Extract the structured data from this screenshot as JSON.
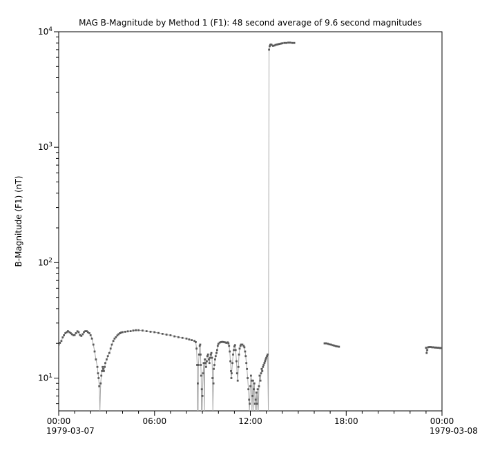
{
  "window": {
    "background": "#ffffff"
  },
  "chart_data": {
    "type": "scatter",
    "title": "MAG  B-Magnitude by Method 1 (F1): 48 second average of 9.6 second magnitudes",
    "ylabel": "B-Magnitude (F1) (nT)",
    "xlabel": "",
    "y_scale": "log",
    "ylim": [
      5.2,
      10000
    ],
    "xlim_hours": [
      0,
      24
    ],
    "grid": false,
    "legend": null,
    "y_major_ticks": [
      {
        "value": 10,
        "base": "10",
        "exp": "1"
      },
      {
        "value": 100,
        "base": "10",
        "exp": "2"
      },
      {
        "value": 1000,
        "base": "10",
        "exp": "3"
      },
      {
        "value": 10000,
        "base": "10",
        "exp": "4"
      }
    ],
    "x_ticks": [
      {
        "hour": 0,
        "label": "00:00",
        "date": "1979-03-07"
      },
      {
        "hour": 6,
        "label": "06:00",
        "date": ""
      },
      {
        "hour": 12,
        "label": "12:00",
        "date": ""
      },
      {
        "hour": 18,
        "label": "18:00",
        "date": ""
      },
      {
        "hour": 24,
        "label": "00:00",
        "date": "1979-03-08"
      }
    ],
    "x_minor_step_hours": 1,
    "colors": {
      "marker": "#5a5a5a",
      "line": "#a9a9a9",
      "axis": "#000000",
      "text": "#000000"
    },
    "offscale_note": "values encoded as 4.5 are below the axis minimum; line drawn to axis, no marker",
    "series": [
      {
        "name": "B-magnitude (F1)",
        "segments": [
          [
            [
              0.0,
              19.5
            ],
            [
              0.08,
              20.2
            ],
            [
              0.17,
              21
            ],
            [
              0.25,
              22.5
            ],
            [
              0.33,
              23.5
            ],
            [
              0.42,
              24.5
            ],
            [
              0.5,
              25
            ],
            [
              0.58,
              25.5
            ],
            [
              0.67,
              25
            ],
            [
              0.75,
              24.5
            ],
            [
              0.83,
              24
            ],
            [
              0.92,
              23.5
            ],
            [
              1.0,
              23.6
            ],
            [
              1.08,
              24.5
            ],
            [
              1.17,
              25.4
            ],
            [
              1.25,
              25
            ],
            [
              1.33,
              23.6
            ],
            [
              1.42,
              23.2
            ],
            [
              1.5,
              24
            ],
            [
              1.58,
              25
            ],
            [
              1.67,
              25.5
            ],
            [
              1.75,
              25.5
            ],
            [
              1.83,
              25
            ],
            [
              1.92,
              24.5
            ],
            [
              2.0,
              23.5
            ],
            [
              2.08,
              22
            ],
            [
              2.17,
              19.5
            ],
            [
              2.25,
              17
            ],
            [
              2.33,
              14.5
            ],
            [
              2.42,
              12.5
            ],
            [
              2.46,
              11
            ],
            [
              2.5,
              10
            ],
            [
              2.54,
              8.5
            ],
            [
              2.58,
              4.5
            ],
            [
              2.63,
              9
            ],
            [
              2.67,
              10.5
            ],
            [
              2.71,
              11.5
            ],
            [
              2.75,
              12.5
            ],
            [
              2.79,
              12
            ],
            [
              2.83,
              11.5
            ],
            [
              2.88,
              12.5
            ],
            [
              2.92,
              13.5
            ],
            [
              3.0,
              14.5
            ],
            [
              3.08,
              15.5
            ],
            [
              3.17,
              16.5
            ],
            [
              3.25,
              18
            ],
            [
              3.33,
              19.5
            ],
            [
              3.42,
              21
            ],
            [
              3.5,
              22
            ],
            [
              3.58,
              22.6
            ],
            [
              3.67,
              23.4
            ],
            [
              3.75,
              24
            ],
            [
              3.83,
              24.5
            ],
            [
              3.92,
              24.8
            ],
            [
              4.0,
              25
            ],
            [
              4.17,
              25.2
            ],
            [
              4.33,
              25.4
            ],
            [
              4.5,
              25.5
            ],
            [
              4.67,
              25.8
            ],
            [
              4.83,
              26
            ],
            [
              5.0,
              26
            ],
            [
              5.25,
              25.8
            ],
            [
              5.5,
              25.5
            ],
            [
              5.75,
              25.2
            ],
            [
              6.0,
              25
            ],
            [
              6.25,
              24.6
            ],
            [
              6.5,
              24.2
            ],
            [
              6.75,
              23.8
            ],
            [
              7.0,
              23.5
            ],
            [
              7.25,
              23
            ],
            [
              7.5,
              22.6
            ],
            [
              7.75,
              22.3
            ],
            [
              8.0,
              22
            ],
            [
              8.17,
              21.6
            ],
            [
              8.33,
              21.3
            ],
            [
              8.5,
              21
            ],
            [
              8.58,
              20.5
            ],
            [
              8.63,
              18
            ],
            [
              8.67,
              13
            ],
            [
              8.69,
              4.5
            ],
            [
              8.71,
              9
            ],
            [
              8.73,
              4.5
            ],
            [
              8.75,
              13
            ],
            [
              8.79,
              16
            ],
            [
              8.83,
              19
            ],
            [
              8.86,
              19.5
            ],
            [
              8.88,
              16
            ],
            [
              8.9,
              13
            ],
            [
              8.92,
              10.5
            ],
            [
              8.94,
              4.5
            ],
            [
              8.96,
              8
            ],
            [
              8.98,
              4.5
            ],
            [
              9.0,
              7
            ],
            [
              9.04,
              11
            ],
            [
              9.08,
              13.5
            ],
            [
              9.13,
              4.5
            ],
            [
              9.15,
              14.5
            ],
            [
              9.19,
              13.5
            ],
            [
              9.23,
              12.5
            ],
            [
              9.27,
              14
            ],
            [
              9.31,
              15.5
            ],
            [
              9.35,
              16
            ],
            [
              9.4,
              14.5
            ],
            [
              9.44,
              13.5
            ],
            [
              9.48,
              15
            ],
            [
              9.52,
              16
            ],
            [
              9.56,
              16.5
            ],
            [
              9.6,
              15
            ],
            [
              9.63,
              10
            ],
            [
              9.65,
              4.5
            ],
            [
              9.69,
              9
            ],
            [
              9.71,
              12
            ],
            [
              9.75,
              13
            ],
            [
              9.79,
              14.5
            ],
            [
              9.83,
              15.5
            ],
            [
              9.88,
              16.5
            ],
            [
              9.92,
              17.5
            ],
            [
              9.96,
              19
            ],
            [
              10.0,
              19.8
            ],
            [
              10.08,
              20.3
            ],
            [
              10.17,
              20.5
            ],
            [
              10.25,
              20.6
            ],
            [
              10.33,
              20.5
            ],
            [
              10.42,
              20.4
            ],
            [
              10.5,
              20.2
            ],
            [
              10.58,
              20.4
            ],
            [
              10.63,
              20
            ],
            [
              10.67,
              19
            ],
            [
              10.71,
              17
            ],
            [
              10.75,
              14
            ],
            [
              10.79,
              11.5
            ],
            [
              10.81,
              10
            ],
            [
              10.83,
              11
            ],
            [
              10.88,
              13.5
            ],
            [
              10.92,
              16
            ],
            [
              10.96,
              17.5
            ],
            [
              11.0,
              18.8
            ],
            [
              11.04,
              19.3
            ],
            [
              11.08,
              17.5
            ],
            [
              11.13,
              14
            ],
            [
              11.17,
              11
            ],
            [
              11.21,
              9.5
            ],
            [
              11.25,
              12.5
            ],
            [
              11.29,
              16
            ],
            [
              11.33,
              18
            ],
            [
              11.38,
              19
            ],
            [
              11.42,
              19.5
            ],
            [
              11.5,
              19.5
            ],
            [
              11.58,
              19
            ],
            [
              11.63,
              18.5
            ],
            [
              11.67,
              17
            ],
            [
              11.71,
              15.5
            ],
            [
              11.75,
              13.5
            ],
            [
              11.79,
              12
            ],
            [
              11.83,
              10
            ],
            [
              11.88,
              8
            ],
            [
              11.92,
              6.5
            ],
            [
              11.94,
              4.5
            ],
            [
              11.96,
              6
            ],
            [
              12.0,
              8.5
            ],
            [
              12.04,
              10.5
            ],
            [
              12.08,
              9.5
            ],
            [
              12.1,
              4.5
            ],
            [
              12.13,
              7
            ],
            [
              12.17,
              9.5
            ],
            [
              12.19,
              4.5
            ],
            [
              12.21,
              8
            ],
            [
              12.25,
              9
            ],
            [
              12.29,
              6
            ],
            [
              12.31,
              4.5
            ],
            [
              12.33,
              6.5
            ],
            [
              12.38,
              7.5
            ],
            [
              12.4,
              4.5
            ],
            [
              12.42,
              6
            ],
            [
              12.46,
              8
            ],
            [
              12.5,
              4.5
            ],
            [
              12.54,
              8.5
            ],
            [
              12.58,
              10.5
            ],
            [
              12.63,
              9.5
            ],
            [
              12.67,
              11
            ],
            [
              12.71,
              12
            ],
            [
              12.75,
              11.5
            ],
            [
              12.79,
              12.5
            ],
            [
              12.83,
              13
            ],
            [
              12.88,
              13.5
            ],
            [
              12.92,
              14
            ],
            [
              12.96,
              14.5
            ],
            [
              13.0,
              15
            ],
            [
              13.04,
              15.5
            ],
            [
              13.08,
              16
            ],
            [
              13.13,
              4.5
            ],
            [
              13.17,
              7000
            ],
            [
              13.21,
              7500
            ],
            [
              13.25,
              7700
            ],
            [
              13.29,
              7750
            ],
            [
              13.33,
              7700
            ],
            [
              13.42,
              7550
            ],
            [
              13.5,
              7600
            ],
            [
              13.58,
              7700
            ],
            [
              13.67,
              7750
            ],
            [
              13.75,
              7800
            ],
            [
              13.83,
              7850
            ],
            [
              13.92,
              7900
            ],
            [
              14.0,
              7950
            ],
            [
              14.13,
              8000
            ],
            [
              14.25,
              8000
            ],
            [
              14.38,
              8050
            ],
            [
              14.5,
              8050
            ],
            [
              14.63,
              8000
            ],
            [
              14.75,
              8000
            ]
          ],
          [
            [
              16.65,
              20
            ],
            [
              16.75,
              20
            ],
            [
              16.85,
              19.8
            ],
            [
              16.95,
              19.6
            ],
            [
              17.05,
              19.5
            ],
            [
              17.15,
              19.3
            ],
            [
              17.25,
              19.1
            ],
            [
              17.35,
              18.9
            ],
            [
              17.45,
              18.8
            ],
            [
              17.55,
              18.7
            ]
          ],
          [
            [
              23.0,
              18.3
            ],
            [
              23.04,
              16.5
            ],
            [
              23.08,
              17.5
            ],
            [
              23.13,
              18.5
            ],
            [
              23.21,
              18.6
            ],
            [
              23.29,
              18.6
            ],
            [
              23.38,
              18.5
            ],
            [
              23.46,
              18.5
            ],
            [
              23.54,
              18.4
            ],
            [
              23.63,
              18.4
            ],
            [
              23.71,
              18.3
            ],
            [
              23.79,
              18.3
            ],
            [
              23.88,
              18.2
            ],
            [
              23.96,
              18.2
            ],
            [
              24.0,
              18.2
            ]
          ]
        ]
      }
    ]
  }
}
